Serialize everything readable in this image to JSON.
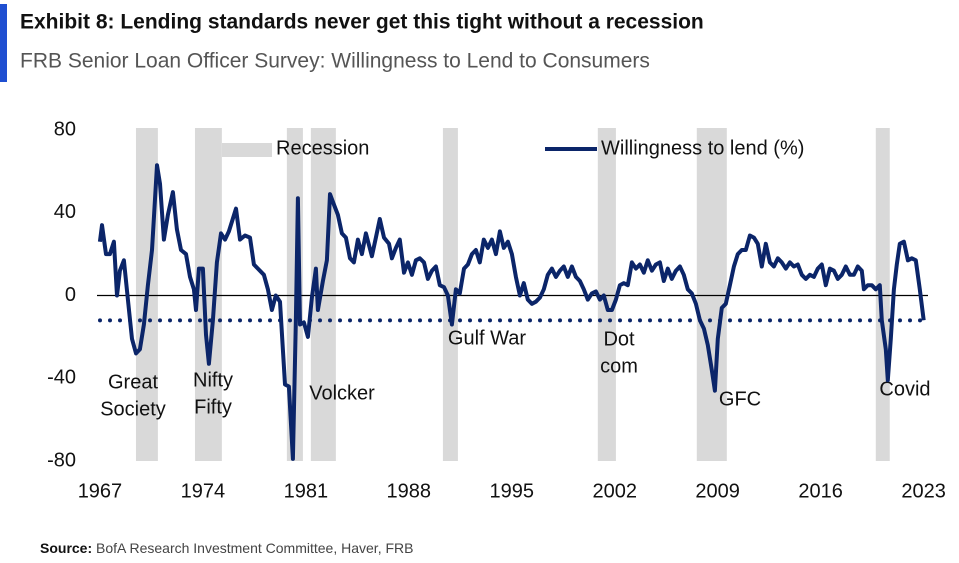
{
  "chart_data": {
    "type": "line",
    "title": "Exhibit 8: Lending standards never get this tight without a recession",
    "subtitle": "FRB Senior Loan Officer Survey: Willingness to Lend to Consumers",
    "source_label": "Source:",
    "source": "BofA Research Investment Committee, Haver, FRB",
    "xlim": [
      1966.8,
      2023.3
    ],
    "xticks": [
      1967,
      1974,
      1981,
      1988,
      1995,
      2002,
      2009,
      2016,
      2023
    ],
    "ylim": [
      -80,
      80
    ],
    "yticks": [
      80,
      40,
      0,
      -40,
      -80
    ],
    "reference_line": -12,
    "recessions": {
      "name": "Recession",
      "color": "#d9d9d9",
      "periods": [
        [
          1969.45,
          1970.94
        ],
        [
          1973.46,
          1975.29
        ],
        [
          1979.71,
          1980.8
        ],
        [
          1981.34,
          1983.04
        ],
        [
          1990.32,
          1991.34
        ],
        [
          2000.85,
          2002.08
        ],
        [
          2007.58,
          2009.62
        ],
        [
          2019.75,
          2020.7
        ]
      ]
    },
    "annotations": [
      {
        "lines": [
          "Great",
          "Society"
        ]
      },
      {
        "lines": [
          "Nifty",
          "Fifty"
        ]
      },
      {
        "lines": [
          "Volcker"
        ]
      },
      {
        "lines": [
          "Gulf War"
        ]
      },
      {
        "lines": [
          "Dot",
          "com"
        ]
      },
      {
        "lines": [
          "GFC"
        ]
      },
      {
        "lines": [
          "Covid"
        ]
      }
    ],
    "x": [
      1967.0,
      1967.14,
      1967.41,
      1967.68,
      1967.95,
      1968.16,
      1968.36,
      1968.63,
      1968.9,
      1969.18,
      1969.45,
      1969.72,
      1969.99,
      1970.26,
      1970.54,
      1970.88,
      1971.08,
      1971.35,
      1971.62,
      1971.96,
      1972.23,
      1972.51,
      1972.85,
      1973.12,
      1973.39,
      1973.53,
      1973.73,
      1974.0,
      1974.21,
      1974.41,
      1974.68,
      1974.95,
      1975.23,
      1975.5,
      1975.77,
      1976.25,
      1976.52,
      1976.86,
      1977.2,
      1977.47,
      1977.74,
      1978.15,
      1978.42,
      1978.69,
      1978.96,
      1979.24,
      1979.58,
      1979.85,
      1980.12,
      1980.32,
      1980.46,
      1980.6,
      1980.87,
      1981.14,
      1981.41,
      1981.68,
      1981.82,
      1982.16,
      1982.43,
      1982.64,
      1982.91,
      1983.18,
      1983.45,
      1983.72,
      1984.0,
      1984.27,
      1984.54,
      1984.81,
      1985.08,
      1985.49,
      1985.76,
      1986.03,
      1986.31,
      1986.65,
      1986.85,
      1987.12,
      1987.39,
      1987.67,
      1987.94,
      1988.21,
      1988.48,
      1988.75,
      1989.03,
      1989.3,
      1989.57,
      1989.84,
      1990.11,
      1990.39,
      1990.66,
      1990.93,
      1991.2,
      1991.47,
      1991.75,
      1992.02,
      1992.29,
      1992.56,
      1992.83,
      1993.1,
      1993.38,
      1993.65,
      1993.92,
      1994.19,
      1994.46,
      1994.74,
      1995.01,
      1995.28,
      1995.55,
      1995.82,
      1996.09,
      1996.37,
      1996.64,
      1996.91,
      1997.18,
      1997.45,
      1997.73,
      1998.0,
      1998.27,
      1998.54,
      1998.81,
      1999.09,
      1999.36,
      1999.63,
      1999.9,
      2000.17,
      2000.45,
      2000.72,
      2000.99,
      2001.26,
      2001.53,
      2001.81,
      2002.08,
      2002.35,
      2002.62,
      2002.89,
      2003.17,
      2003.44,
      2003.71,
      2003.98,
      2004.25,
      2004.53,
      2004.8,
      2005.07,
      2005.34,
      2005.61,
      2005.88,
      2006.16,
      2006.43,
      2006.7,
      2006.97,
      2007.24,
      2007.52,
      2007.79,
      2008.06,
      2008.33,
      2008.6,
      2008.81,
      2009.01,
      2009.28,
      2009.55,
      2009.83,
      2010.1,
      2010.37,
      2010.64,
      2010.91,
      2011.19,
      2011.46,
      2011.73,
      2012.0,
      2012.27,
      2012.55,
      2012.82,
      2013.09,
      2013.36,
      2013.63,
      2013.91,
      2014.18,
      2014.45,
      2014.72,
      2014.99,
      2015.27,
      2015.54,
      2015.81,
      2016.08,
      2016.35,
      2016.63,
      2016.9,
      2017.17,
      2017.44,
      2017.71,
      2017.99,
      2018.26,
      2018.53,
      2018.8,
      2018.94,
      2019.21,
      2019.48,
      2019.75,
      2020.02,
      2020.16,
      2020.43,
      2020.57,
      2020.77,
      2020.98,
      2021.18,
      2021.38,
      2021.66,
      2021.93,
      2022.2,
      2022.47,
      2022.74,
      2023.01
    ],
    "series": [
      {
        "name": "Willingness to lend (%)",
        "color": "#0b2569",
        "values": [
          26,
          34,
          20,
          20,
          26,
          0,
          12,
          17,
          -2,
          -21,
          -28,
          -26,
          -14,
          5,
          22,
          63,
          54,
          27,
          39,
          50,
          32,
          22,
          20,
          9,
          3,
          -7,
          13,
          13,
          -19,
          -33,
          -12,
          16,
          30,
          27,
          31,
          42,
          27,
          29,
          28,
          15,
          13,
          10,
          3,
          -7,
          0,
          -3,
          -43,
          -44,
          -79,
          -11,
          47,
          -14,
          -13,
          -20,
          -1,
          13,
          -7,
          7,
          17,
          49,
          44,
          39,
          30,
          28,
          18,
          16,
          27,
          20,
          30,
          19,
          28,
          37,
          28,
          25,
          18,
          23,
          27,
          11,
          16,
          10,
          17,
          18,
          16,
          8,
          12,
          14,
          5,
          4,
          0,
          -14,
          3,
          1,
          13,
          15,
          20,
          22,
          16,
          27,
          23,
          27,
          20,
          31,
          23,
          26,
          20,
          9,
          0,
          6,
          -2,
          -4,
          -3,
          -1,
          3,
          10,
          13,
          9,
          12,
          14,
          9,
          14,
          9,
          7,
          3,
          -2,
          1,
          2,
          -2,
          0,
          -7,
          -7,
          -2,
          5,
          6,
          5,
          16,
          13,
          15,
          11,
          17,
          12,
          15,
          16,
          7,
          13,
          8,
          12,
          14,
          10,
          3,
          1,
          -4,
          -12,
          -16,
          -24,
          -36,
          -46,
          -21,
          -6,
          -4,
          5,
          14,
          20,
          22,
          22,
          29,
          28,
          25,
          14,
          25,
          16,
          14,
          18,
          16,
          13,
          16,
          14,
          15,
          10,
          8,
          10,
          9,
          13,
          15,
          5,
          13,
          12,
          8,
          10,
          14,
          10,
          10,
          14,
          12,
          3,
          5,
          5,
          3,
          5,
          -12,
          -26,
          -41,
          -21,
          3,
          15,
          25,
          26,
          17,
          18,
          17,
          3,
          -12
        ]
      }
    ]
  }
}
